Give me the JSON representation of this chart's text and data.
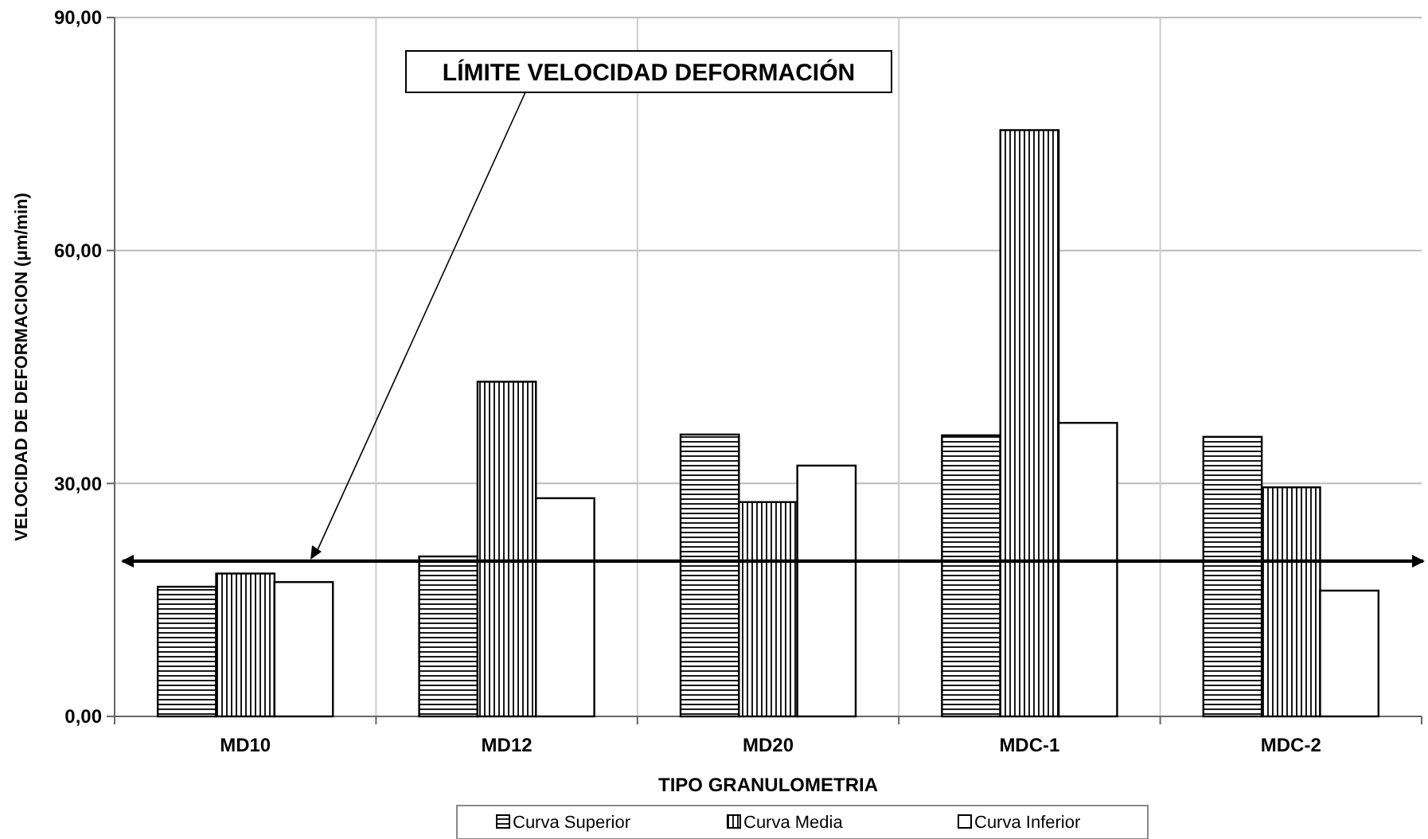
{
  "chart_data": {
    "type": "bar",
    "xlabel": "TIPO GRANULOMETRIA",
    "ylabel": "VELOCIDAD DE DEFORMACION (μm/min)",
    "categories": [
      "MD10",
      "MD12",
      "MD20",
      "MDC-1",
      "MDC-2"
    ],
    "series": [
      {
        "name": "Curva Superior",
        "color": "#000000",
        "values": [
          16.7,
          20.6,
          36.3,
          36.2,
          36.0
        ]
      },
      {
        "name": "Curva Media",
        "color": "#000000",
        "values": [
          18.4,
          43.1,
          27.6,
          75.5,
          29.5
        ]
      },
      {
        "name": "Curva Inferior",
        "color": "#ffffff",
        "values": [
          17.3,
          28.1,
          32.3,
          37.8,
          16.2
        ]
      }
    ],
    "ylim": [
      0,
      90
    ],
    "yticks": [
      {
        "value": 0,
        "label": "0,00"
      },
      {
        "value": 30,
        "label": "30,00"
      },
      {
        "value": 60,
        "label": "60,00"
      },
      {
        "value": 90,
        "label": "90,00"
      }
    ],
    "ref_lines": [
      {
        "axis": "y",
        "value": 20,
        "label": "LÍMITE VELOCIDAD DEFORMACIÓN",
        "color": "#000000"
      }
    ],
    "grid": true,
    "legend": "bottom"
  }
}
